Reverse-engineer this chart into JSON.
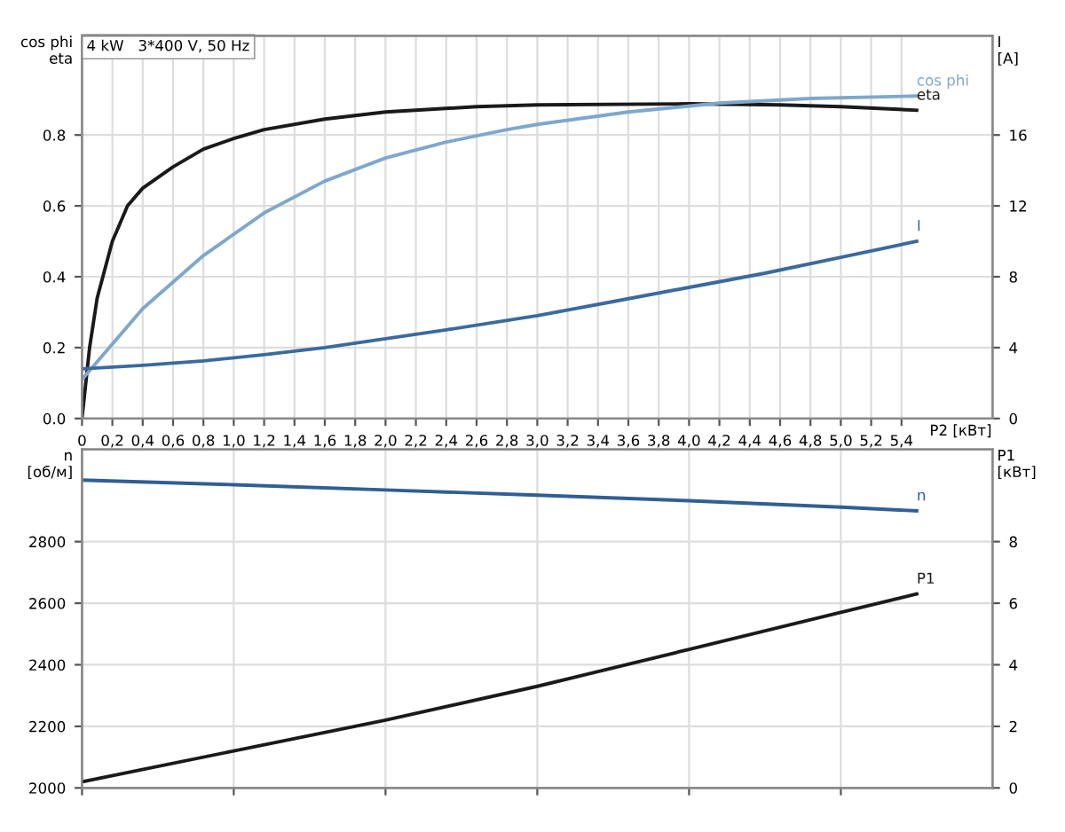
{
  "chart_data": [
    {
      "type": "line",
      "annotations": [
        "4 kW   3*400 V, 50 Hz"
      ],
      "ylabel": "cos phi\neta",
      "y2label": "I\n[A]",
      "xlabel": "P2 [кВт]",
      "xlim": [
        0,
        6
      ],
      "xticks": [
        0,
        {
          "value": 0.2,
          "label": "0,2"
        },
        {
          "value": 0.4,
          "label": "0,4"
        },
        {
          "value": 0.6,
          "label": "0,6"
        },
        {
          "value": 0.8,
          "label": "0,8"
        },
        {
          "value": 1.0,
          "label": "1,0"
        },
        {
          "value": 1.2,
          "label": "1,2"
        },
        {
          "value": 1.4,
          "label": "1,4"
        },
        {
          "value": 1.6,
          "label": "1,6"
        },
        {
          "value": 1.8,
          "label": "1,8"
        },
        {
          "value": 2.0,
          "label": "2,0"
        },
        {
          "value": 2.2,
          "label": "2,2"
        },
        {
          "value": 2.4,
          "label": "2,4"
        },
        {
          "value": 2.6,
          "label": "2,6"
        },
        {
          "value": 2.8,
          "label": "2,8"
        },
        {
          "value": 3.0,
          "label": "3,0"
        },
        {
          "value": 3.2,
          "label": "3,2"
        },
        {
          "value": 3.4,
          "label": "3,4"
        },
        {
          "value": 3.6,
          "label": "3,6"
        },
        {
          "value": 3.8,
          "label": "3,8"
        },
        {
          "value": 4.0,
          "label": "4,0"
        },
        {
          "value": 4.2,
          "label": "4,2"
        },
        {
          "value": 4.4,
          "label": "4,4"
        },
        {
          "value": 4.6,
          "label": "4,6"
        },
        {
          "value": 4.8,
          "label": "4,8"
        },
        {
          "value": 5.0,
          "label": "5,0"
        },
        {
          "value": 5.2,
          "label": "5,2"
        },
        {
          "value": 5.4,
          "label": "5,4"
        }
      ],
      "ylim": [
        0,
        1.08
      ],
      "yticks": [
        {
          "value": 0,
          "label": "0.0"
        },
        0.2,
        0.4,
        0.6,
        0.8
      ],
      "y2lim": [
        0,
        21.6
      ],
      "y2ticks": [
        0,
        4,
        8,
        12,
        16
      ],
      "grid": true,
      "legend": false,
      "series": [
        {
          "name": "eta",
          "color": "#1a1a1a",
          "x": [
            0,
            0.05,
            0.1,
            0.2,
            0.3,
            0.4,
            0.6,
            0.8,
            1.0,
            1.2,
            1.6,
            2.0,
            2.6,
            3.0,
            4.0,
            4.6,
            5.0,
            5.5
          ],
          "values": [
            0,
            0.2,
            0.34,
            0.5,
            0.6,
            0.65,
            0.71,
            0.76,
            0.79,
            0.815,
            0.845,
            0.865,
            0.88,
            0.885,
            0.888,
            0.885,
            0.88,
            0.87
          ]
        },
        {
          "name": "cos phi",
          "color": "#7fa7cc",
          "x": [
            0,
            0.4,
            0.8,
            1.2,
            1.6,
            2.0,
            2.4,
            2.8,
            3.0,
            3.6,
            4.2,
            4.8,
            5.5
          ],
          "values": [
            0.11,
            0.31,
            0.46,
            0.58,
            0.67,
            0.735,
            0.78,
            0.815,
            0.83,
            0.865,
            0.89,
            0.903,
            0.91
          ]
        },
        {
          "name": "I",
          "color": "#3a6a9e",
          "axis": "y2",
          "x": [
            0,
            0.4,
            0.8,
            1.2,
            1.6,
            2.0,
            2.4,
            3.0,
            3.5,
            4.0,
            4.5,
            5.0,
            5.5
          ],
          "values": [
            2.8,
            3.0,
            3.25,
            3.6,
            4.0,
            4.5,
            5.0,
            5.8,
            6.6,
            7.4,
            8.2,
            9.1,
            10
          ]
        }
      ]
    },
    {
      "type": "line",
      "ylabel": "n\n[об/м]",
      "y2label": "P1\n[кВт]",
      "xlim": [
        0,
        6
      ],
      "xticks": [
        0,
        1,
        2,
        3,
        4,
        5
      ],
      "tick_labels": "y",
      "ylim": [
        2000,
        3100
      ],
      "yticks": [
        2000,
        2200,
        2400,
        2600,
        2800
      ],
      "y2lim": [
        0,
        11
      ],
      "y2ticks": [
        0,
        2,
        4,
        6,
        8
      ],
      "grid": true,
      "legend": false,
      "series": [
        {
          "name": "n",
          "color": "#2f5f95",
          "x": [
            0,
            1,
            2,
            3,
            4,
            5,
            5.5
          ],
          "values": [
            3000,
            2985,
            2968,
            2951,
            2933,
            2912,
            2900
          ]
        },
        {
          "name": "P1",
          "color": "#1a1a1a",
          "axis": "y2",
          "x": [
            0,
            1,
            2,
            3,
            4,
            5,
            5.5
          ],
          "values": [
            0.2,
            1.2,
            2.2,
            3.3,
            4.5,
            5.7,
            6.3
          ]
        }
      ]
    }
  ]
}
